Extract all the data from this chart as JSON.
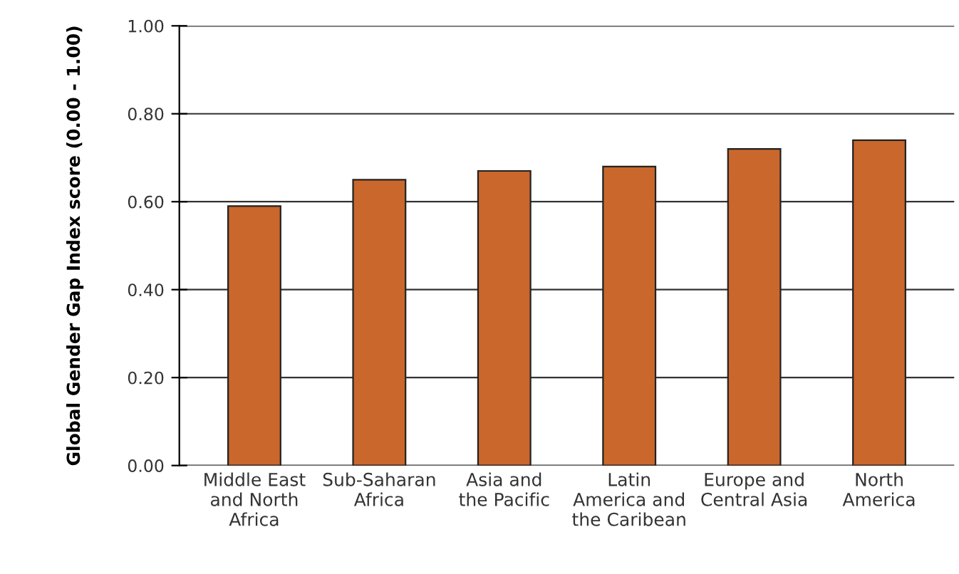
{
  "chart_data": {
    "type": "bar",
    "ylabel": "Global Gender Gap Index score (0.00 - 1.00)",
    "categories": [
      "Middle East\nand North\nAfrica",
      "Sub-Saharan\nAfrica",
      "Asia and\nthe Pacific",
      "Latin\nAmerica and\nthe Caribean",
      "Europe and\nCentral Asia",
      "North\nAmerica"
    ],
    "values": [
      0.59,
      0.65,
      0.67,
      0.68,
      0.72,
      0.74
    ],
    "color": "#c9672c",
    "ylim": [
      0,
      1
    ],
    "yticks": [
      {
        "value": 0,
        "label": "0.00"
      },
      {
        "value": 0.2,
        "label": "0.20"
      },
      {
        "value": 0.4,
        "label": "0.40"
      },
      {
        "value": 0.6,
        "label": "0.60"
      },
      {
        "value": 0.8,
        "label": "0.80"
      },
      {
        "value": 1,
        "label": "1.00"
      }
    ],
    "grid": "y"
  }
}
